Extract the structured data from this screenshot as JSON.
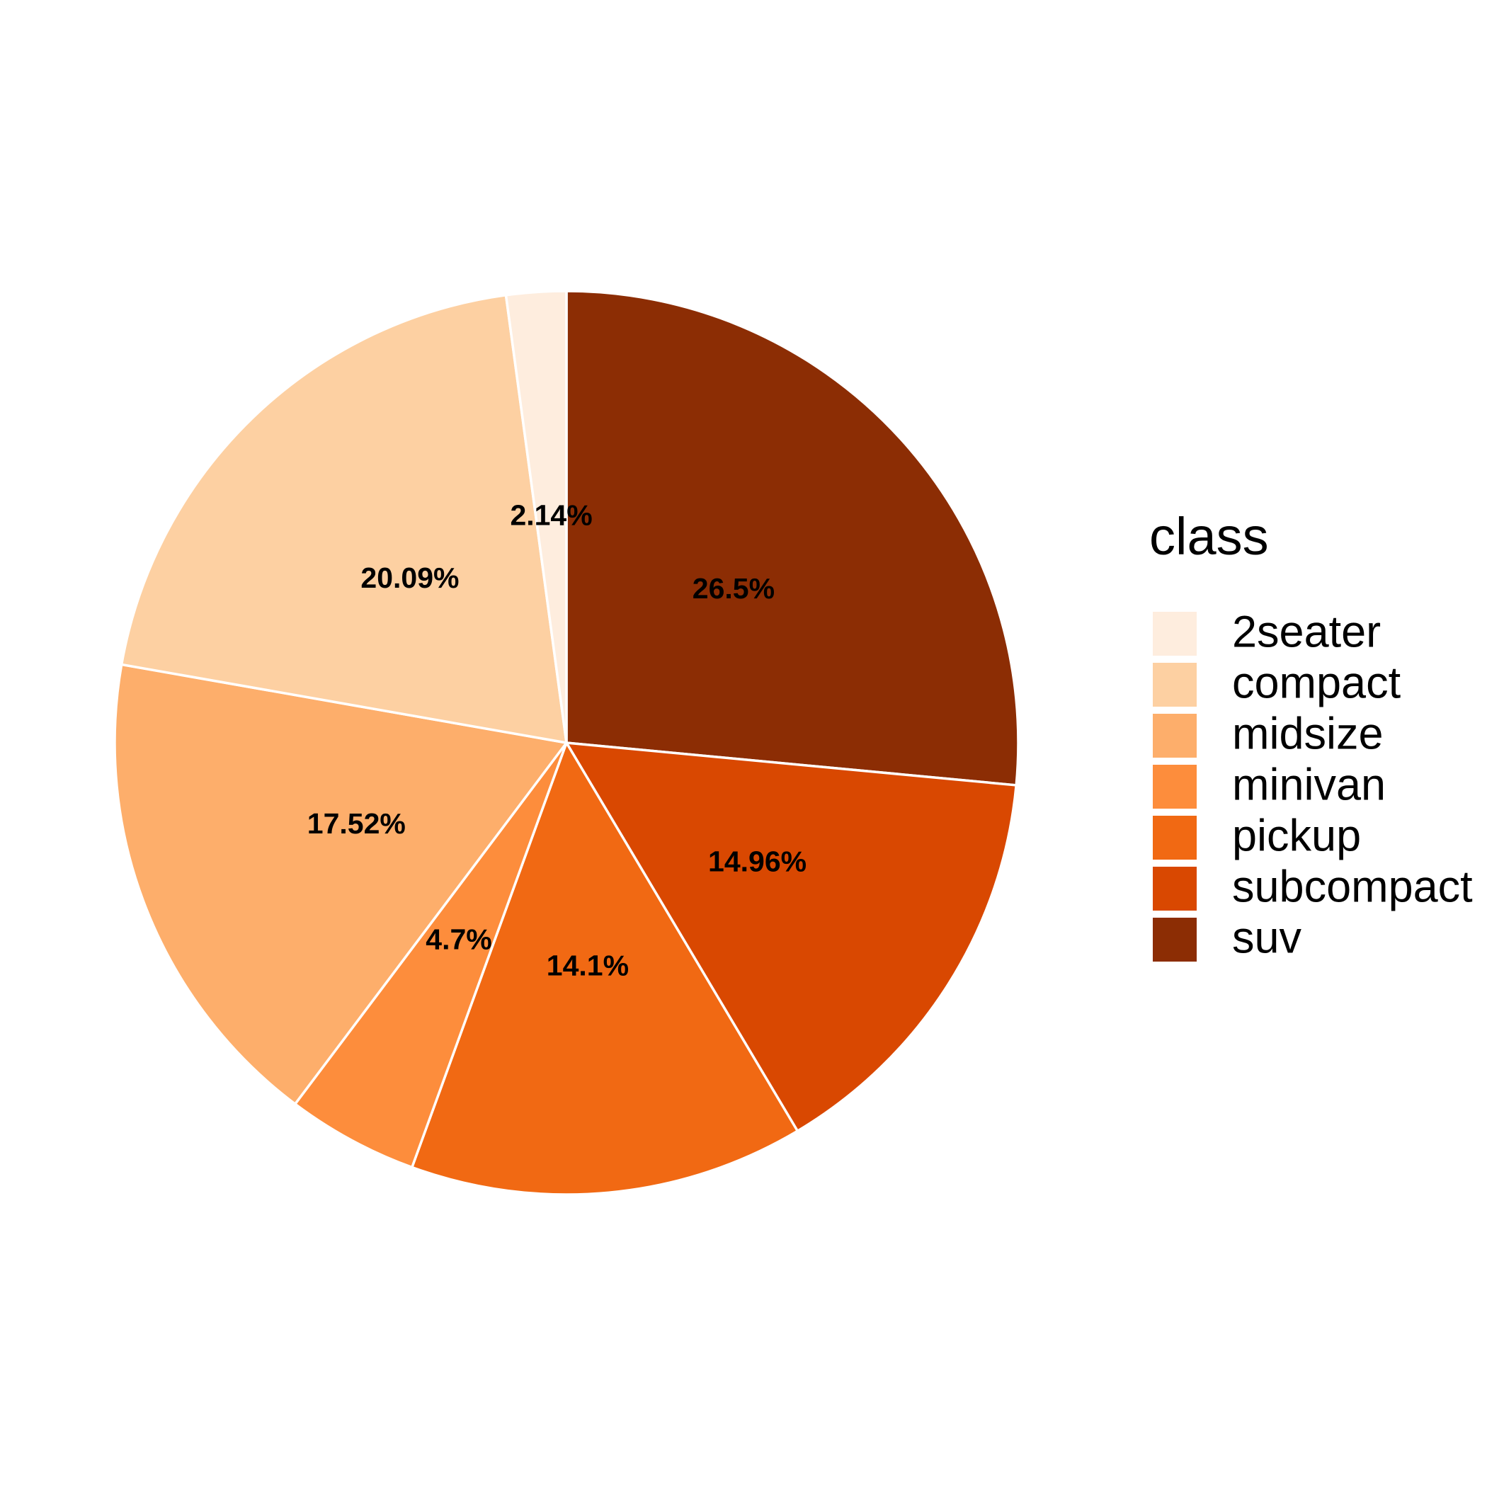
{
  "chart_data": {
    "type": "pie",
    "title": "",
    "legend": {
      "title": "class",
      "position": "right"
    },
    "categories": [
      "2seater",
      "compact",
      "midsize",
      "minivan",
      "pickup",
      "subcompact",
      "suv"
    ],
    "values": [
      2.14,
      20.09,
      17.52,
      4.7,
      14.1,
      14.96,
      26.5
    ],
    "labels": [
      "2.14%",
      "20.09%",
      "17.52%",
      "4.7%",
      "14.1%",
      "14.96%",
      "26.5%"
    ],
    "colors": [
      "#FEEDDE",
      "#FDD0A2",
      "#FDAE6B",
      "#FD8D3C",
      "#F16913",
      "#D94801",
      "#8C2D04"
    ]
  }
}
